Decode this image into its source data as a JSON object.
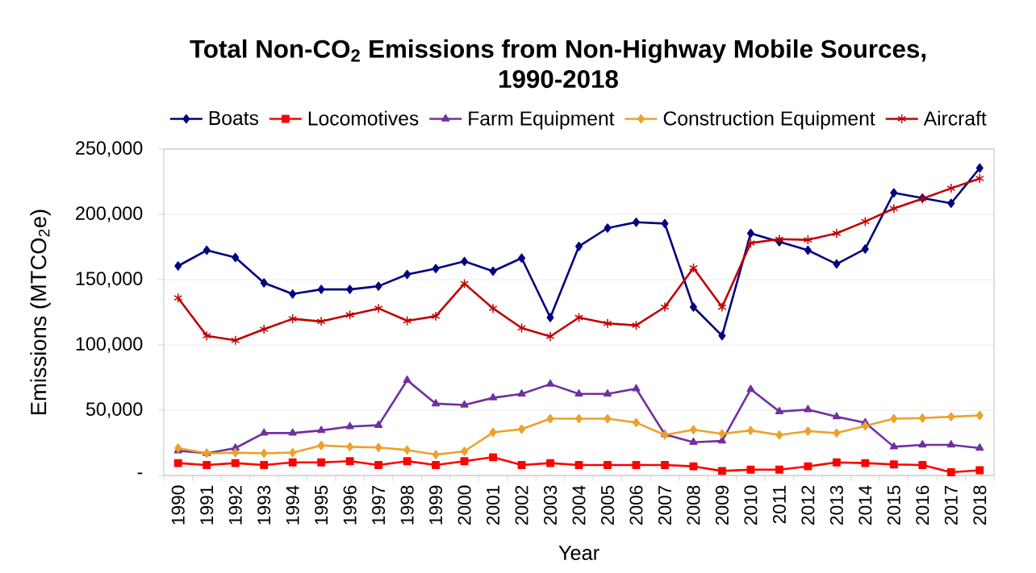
{
  "chart_data": {
    "type": "line",
    "title": "Total Non-CO$_{2}$ Emissions from Non-Highway Mobile Sources, 1990-2018",
    "xlabel": "Year",
    "ylabel": "Emissions (MTCO$_{2}$e)",
    "categories": [
      "1990",
      "1991",
      "1992",
      "1993",
      "1994",
      "1995",
      "1996",
      "1997",
      "1998",
      "1999",
      "2000",
      "2001",
      "2002",
      "2003",
      "2004",
      "2005",
      "2006",
      "2007",
      "2008",
      "2009",
      "2010",
      "2011",
      "2012",
      "2013",
      "2014",
      "2015",
      "2016",
      "2017",
      "2018"
    ],
    "series": [
      {
        "name": "Boats",
        "color": "#000080",
        "marker": "diamond",
        "values": [
          160500,
          172500,
          167000,
          147500,
          139000,
          142500,
          142500,
          145000,
          154000,
          158500,
          164000,
          156500,
          166500,
          121000,
          175500,
          189500,
          194000,
          193000,
          129000,
          107000,
          185500,
          179000,
          172500,
          162000,
          173500,
          216500,
          212500,
          208500,
          235500
        ]
      },
      {
        "name": "Locomotives",
        "color": "#ff0000",
        "marker": "square",
        "values": [
          9500,
          8000,
          9500,
          8000,
          10000,
          10000,
          11000,
          8000,
          11000,
          8000,
          11000,
          14000,
          8000,
          9500,
          8000,
          8000,
          8000,
          8000,
          7000,
          3500,
          4500,
          4500,
          7000,
          10000,
          9500,
          8500,
          8000,
          2500,
          4000
        ]
      },
      {
        "name": "Farm Equipment",
        "color": "#7030a0",
        "marker": "triangle",
        "values": [
          19000,
          17000,
          21000,
          32500,
          32500,
          34500,
          37500,
          38500,
          73000,
          55000,
          54000,
          59500,
          62500,
          70000,
          62500,
          62500,
          66500,
          31500,
          25500,
          26500,
          66000,
          49000,
          50500,
          45000,
          40500,
          22000,
          23500,
          23500,
          21000
        ]
      },
      {
        "name": "Construction Equipment",
        "color": "#eca22a",
        "marker": "diamond",
        "values": [
          21000,
          17000,
          17500,
          17000,
          17500,
          23000,
          22000,
          21500,
          19500,
          16000,
          18500,
          33000,
          35500,
          43500,
          43500,
          43500,
          40500,
          31000,
          35000,
          32000,
          34500,
          31000,
          34000,
          32500,
          38000,
          43500,
          44000,
          45000,
          46000
        ]
      },
      {
        "name": "Aircraft",
        "color": "#c00000",
        "marker": "cross",
        "values": [
          136000,
          107000,
          103500,
          112000,
          120000,
          118000,
          123000,
          128000,
          118500,
          122000,
          147000,
          128000,
          113000,
          106500,
          121000,
          116500,
          115000,
          129000,
          159000,
          129000,
          178000,
          181000,
          180500,
          185500,
          194500,
          204500,
          212000,
          220000,
          227500
        ]
      }
    ],
    "ylim": [
      0,
      250000
    ],
    "yticks": [
      {
        "value": 0,
        "label": "-"
      },
      {
        "value": 50000,
        "label": "50,000"
      },
      {
        "value": 100000,
        "label": "100,000"
      },
      {
        "value": 150000,
        "label": "150,000"
      },
      {
        "value": 200000,
        "label": "200,000"
      },
      {
        "value": 250000,
        "label": "250,000"
      }
    ],
    "grid": "y",
    "legend": "top",
    "line_style": "solid"
  }
}
